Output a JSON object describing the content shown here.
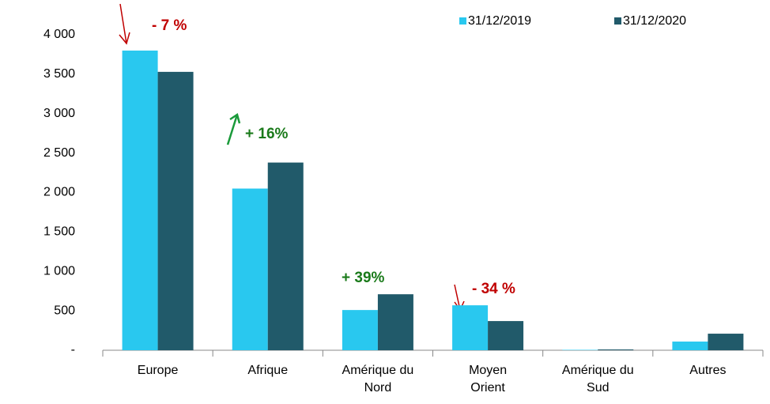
{
  "chart_data": {
    "type": "bar",
    "categories": [
      "Europe",
      "Afrique",
      "Amérique du\nNord",
      "Moyen\nOrient",
      "Amérique du\nSud",
      "Autres"
    ],
    "series": [
      {
        "name": "31/12/2019",
        "color": "#29c8ef",
        "values": [
          3800,
          2050,
          510,
          570,
          5,
          110
        ]
      },
      {
        "name": "31/12/2020",
        "color": "#215a6a",
        "values": [
          3530,
          2380,
          710,
          370,
          10,
          210
        ]
      }
    ],
    "ylim": [
      0,
      4000
    ],
    "yticks": [
      {
        "value": 0,
        "label": "-"
      },
      500,
      {
        "value": 1000,
        "label": "1 000"
      },
      {
        "value": 1500,
        "label": "1 500"
      },
      {
        "value": 2000,
        "label": "2 000"
      },
      {
        "value": 2500,
        "label": "2 500"
      },
      {
        "value": 3000,
        "label": "3 000"
      },
      {
        "value": 3500,
        "label": "3 500"
      },
      {
        "value": 4000,
        "label": "4 000"
      }
    ],
    "grid": false,
    "legend": "top-right",
    "annotations": [
      {
        "text": "- 7 %",
        "color": "#c00000"
      },
      {
        "text": "+ 16%",
        "color": "#1a7a1a"
      },
      {
        "text": "+ 39%",
        "color": "#1a7a1a"
      },
      {
        "text": "- 34 %",
        "color": "#c00000"
      }
    ]
  }
}
